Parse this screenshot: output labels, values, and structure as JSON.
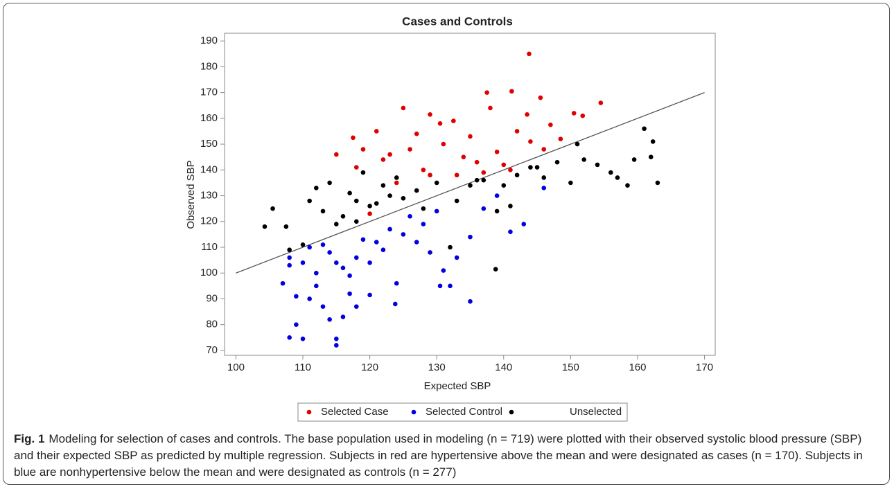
{
  "chart_data": {
    "type": "scatter",
    "title": "Cases and Controls",
    "x_label": "Expected SBP",
    "y_label": "Observed SBP",
    "xlim": [
      98.3,
      171.6
    ],
    "ylim": [
      68.1,
      193
    ],
    "xticks": [
      100,
      110,
      120,
      130,
      140,
      150,
      160,
      170
    ],
    "yticks": [
      70,
      80,
      90,
      100,
      110,
      120,
      130,
      140,
      150,
      160,
      170,
      180,
      190
    ],
    "reference_line": {
      "x": [
        100,
        170
      ],
      "y": [
        100,
        170
      ]
    },
    "series": [
      {
        "name": "Selected Case",
        "color": "#e00000",
        "x": [
          143.8,
          137.5,
          141.2,
          145.5,
          154.5,
          125,
          129,
          138,
          150.5,
          151.8,
          143.5,
          132.5,
          117.5,
          121,
          130.5,
          127,
          135,
          147,
          148.5,
          119,
          123,
          126,
          131,
          134,
          136,
          139,
          141,
          142,
          144,
          146,
          115,
          118,
          122,
          128,
          133,
          137,
          140,
          129,
          124,
          120
        ],
        "y": [
          185,
          170,
          170.5,
          168,
          166,
          164,
          161.5,
          164,
          162,
          161,
          161.5,
          159,
          152.5,
          155,
          158,
          154,
          153,
          157.5,
          152,
          148,
          146,
          148,
          150,
          145,
          143,
          147,
          140,
          155,
          151,
          148,
          146,
          141,
          144,
          140,
          138,
          139,
          142,
          138,
          135,
          123
        ]
      },
      {
        "name": "Selected Control",
        "color": "#0000e0",
        "x": [
          108,
          110,
          115,
          115,
          109,
          114,
          116,
          118,
          113,
          123.8,
          135,
          107,
          109,
          111,
          112,
          117,
          120,
          124,
          130.5,
          132,
          108,
          110,
          112,
          114,
          116,
          118,
          120,
          121,
          123,
          125,
          127,
          129,
          131,
          133,
          135,
          137,
          139,
          141,
          143,
          146,
          108,
          111,
          113,
          115,
          117,
          119,
          122,
          126,
          128,
          130
        ],
        "y": [
          75,
          74.5,
          72,
          74.5,
          80,
          82,
          83,
          87,
          87,
          88,
          89,
          96,
          91,
          90,
          95,
          92,
          91.5,
          96,
          95,
          95,
          103,
          104,
          100,
          108,
          102,
          106,
          104,
          112,
          117,
          115,
          112,
          108,
          101,
          106,
          114,
          125,
          130,
          116,
          119,
          133,
          106,
          110,
          111,
          104,
          99,
          113,
          109,
          122,
          119,
          124
        ]
      },
      {
        "name": "Unselected",
        "color": "#000000",
        "x": [
          104.3,
          105.5,
          107.5,
          108,
          110,
          111,
          112,
          113,
          114,
          115,
          116,
          117,
          118,
          119,
          120,
          121,
          122,
          123,
          124,
          125,
          127,
          130,
          132,
          133,
          135,
          137,
          138.8,
          139,
          141,
          142,
          144,
          146,
          148,
          150,
          151,
          152,
          154,
          156,
          157,
          158.5,
          159.5,
          161,
          162,
          162.3,
          163,
          145,
          140,
          136,
          128,
          118
        ],
        "y": [
          118,
          125,
          118,
          109,
          111,
          128,
          133,
          124,
          135,
          119,
          122,
          131,
          128,
          139,
          126,
          127,
          134,
          130,
          137,
          129,
          132,
          135,
          110,
          128,
          134,
          136,
          101.5,
          124,
          126,
          138,
          141,
          137,
          143,
          135,
          150,
          144,
          142,
          139,
          137,
          134,
          144,
          156,
          145,
          151,
          135,
          141,
          134,
          136,
          125,
          120
        ]
      }
    ]
  },
  "caption": {
    "label": "Fig. 1",
    "text": "Modeling for selection of cases and controls. The base population used in modeling (n = 719) were plotted with their observed systolic blood pressure (SBP) and their expected SBP as predicted by multiple regression. Subjects in red are hypertensive above the mean and were designated as cases (n = 170). Subjects in blue are nonhypertensive below the mean and were designated as controls (n = 277)"
  }
}
